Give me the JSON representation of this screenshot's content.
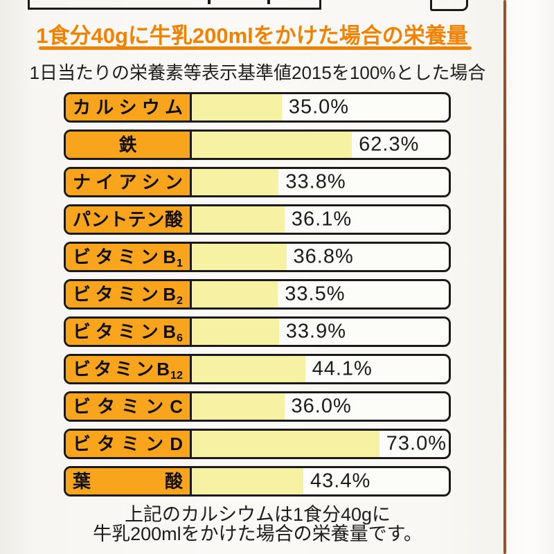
{
  "page": {
    "heading": "1食分40gに牛乳200mlをかけた場合の栄養量",
    "subtitle": "1日当たりの栄養素等表示基準値2015を100%とした場合",
    "caption_line1": "上記のカルシウムは1食分40gに",
    "caption_line2": "牛乳200mlをかけた場合の栄養量です。"
  },
  "colors": {
    "heading_orange": "#F18200",
    "label_orange": "#F8A41D",
    "bar_fill_yellow": "#F7F1A3",
    "border_black": "#1A1A1A",
    "package_edge_brown": "#9A512E"
  },
  "chart_data": {
    "type": "bar",
    "orientation": "horizontal",
    "unit": "%",
    "axis_min": 0,
    "axis_max": 100,
    "grid": false,
    "legend": false,
    "title": "1食分40gに牛乳200mlをかけた場合の栄養量",
    "subtitle": "1日当たりの栄養素等表示基準値2015を100%とした場合",
    "categories": [
      "カルシウム",
      "鉄",
      "ナイアシン",
      "パントテン酸",
      "ビタミンB1",
      "ビタミンB2",
      "ビタミンB6",
      "ビタミンB12",
      "ビタミンC",
      "ビタミンD",
      "葉酸"
    ],
    "values": [
      35.0,
      62.3,
      33.8,
      36.1,
      36.8,
      33.5,
      33.9,
      44.1,
      36.0,
      73.0,
      43.4
    ],
    "value_labels": [
      "35.0%",
      "62.3%",
      "33.8%",
      "36.1%",
      "36.8%",
      "33.5%",
      "33.9%",
      "44.1%",
      "36.0%",
      "73.0%",
      "43.4%"
    ],
    "annotation": "上記のカルシウムは1食分40gに牛乳200mlをかけた場合の栄養量です。"
  },
  "rows": [
    {
      "label": "カルシウム",
      "sub": "",
      "value": 35.0,
      "display": "35.0%"
    },
    {
      "label": "鉄",
      "sub": "",
      "value": 62.3,
      "display": "62.3%"
    },
    {
      "label": "ナイアシン",
      "sub": "",
      "value": 33.8,
      "display": "33.8%"
    },
    {
      "label": "パントテン酸",
      "sub": "",
      "value": 36.1,
      "display": "36.1%"
    },
    {
      "label": "ビタミンB",
      "sub": "1",
      "value": 36.8,
      "display": "36.8%"
    },
    {
      "label": "ビタミンB",
      "sub": "2",
      "value": 33.5,
      "display": "33.5%"
    },
    {
      "label": "ビタミンB",
      "sub": "6",
      "value": 33.9,
      "display": "33.9%"
    },
    {
      "label": "ビタミンB",
      "sub": "12",
      "value": 44.1,
      "display": "44.1%"
    },
    {
      "label": "ビタミンC",
      "sub": "",
      "value": 36.0,
      "display": "36.0%"
    },
    {
      "label": "ビタミンD",
      "sub": "",
      "value": 73.0,
      "display": "73.0%"
    },
    {
      "label": "葉酸",
      "sub": "",
      "value": 43.4,
      "display": "43.4%"
    }
  ]
}
